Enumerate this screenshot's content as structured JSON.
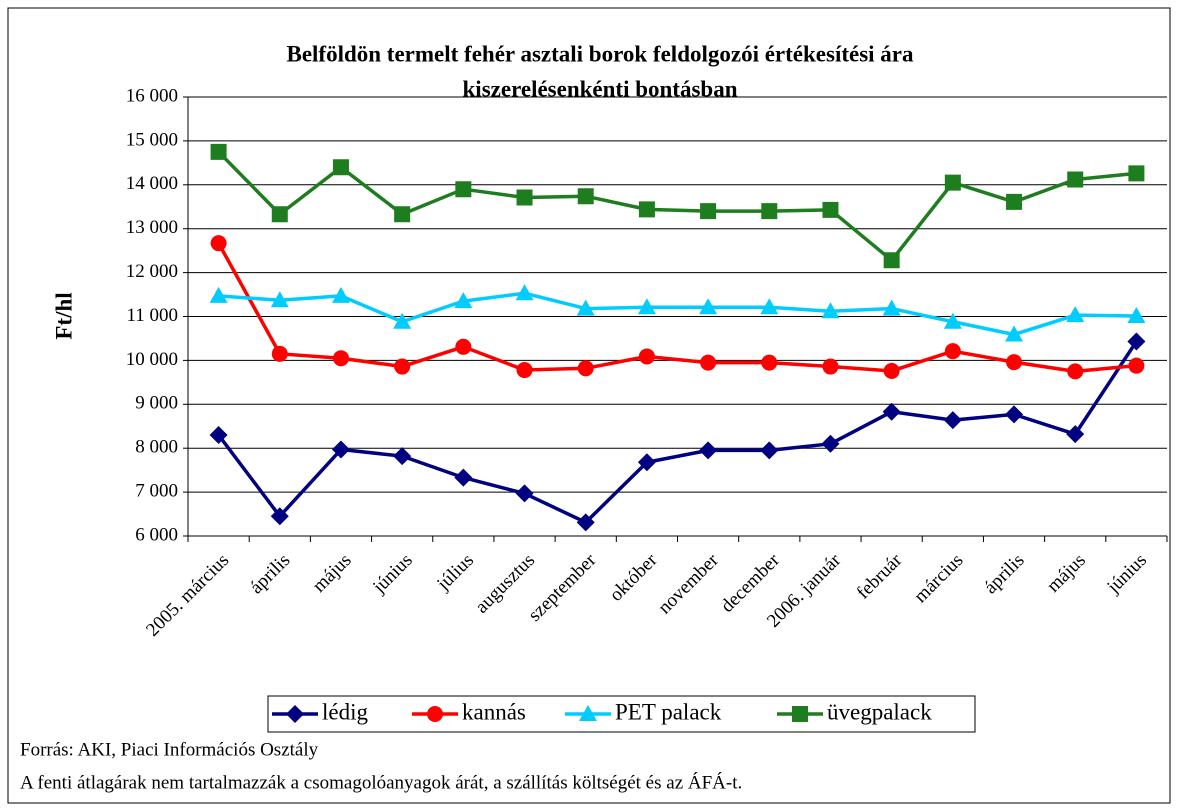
{
  "chart_data": {
    "type": "line",
    "title": [
      "Belföldön termelt fehér asztali borok feldolgozói értékesítési ára",
      "kiszerelésenkénti bontásban"
    ],
    "ylabel": "Ft/hl",
    "categories": [
      "2005. március",
      "április",
      "május",
      "június",
      "július",
      "augusztus",
      "szeptember",
      "október",
      "november",
      "december",
      "2006. január",
      "február",
      "március",
      "április",
      "május",
      "június"
    ],
    "series": [
      {
        "name": "lédig",
        "color": "#000080",
        "marker": "diamond",
        "values": [
          8300,
          6450,
          7970,
          7820,
          7330,
          6970,
          6310,
          7680,
          7950,
          7950,
          8100,
          8830,
          8640,
          8770,
          8320,
          10430
        ]
      },
      {
        "name": "kannás",
        "color": "#ff0000",
        "marker": "circle",
        "values": [
          12670,
          10150,
          10050,
          9860,
          10310,
          9780,
          9820,
          10090,
          9950,
          9950,
          9860,
          9760,
          10210,
          9960,
          9750,
          9880
        ]
      },
      {
        "name": "PET palack",
        "color": "#00ccff",
        "marker": "triangle",
        "values": [
          11470,
          11370,
          11470,
          10880,
          11350,
          11530,
          11180,
          11210,
          11210,
          11210,
          11120,
          11180,
          10880,
          10590,
          11030,
          11010
        ]
      },
      {
        "name": "üvegpalack",
        "color": "#1e7d1e",
        "marker": "square",
        "values": [
          14750,
          13330,
          14400,
          13330,
          13900,
          13710,
          13740,
          13440,
          13400,
          13400,
          13430,
          12280,
          14050,
          13610,
          14120,
          14260
        ]
      }
    ],
    "ylim": [
      6000,
      16000
    ],
    "yticks": [
      {
        "value": 6000,
        "label": "6 000"
      },
      {
        "value": 7000,
        "label": "7 000"
      },
      {
        "value": 8000,
        "label": "8 000"
      },
      {
        "value": 9000,
        "label": "9 000"
      },
      {
        "value": 10000,
        "label": "10 000"
      },
      {
        "value": 11000,
        "label": "11 000"
      },
      {
        "value": 12000,
        "label": "12 000"
      },
      {
        "value": 13000,
        "label": "13 000"
      },
      {
        "value": 14000,
        "label": "14 000"
      },
      {
        "value": 15000,
        "label": "15 000"
      },
      {
        "value": 16000,
        "label": "16 000"
      }
    ],
    "grid": true,
    "legend": "bottom",
    "notes": [
      "Forrás: AKI, Piaci Információs Osztály",
      "A fenti átlagárak nem tartalmazzák a csomagolóanyagok árát, a szállítás költségét és az ÁFÁ-t."
    ]
  }
}
